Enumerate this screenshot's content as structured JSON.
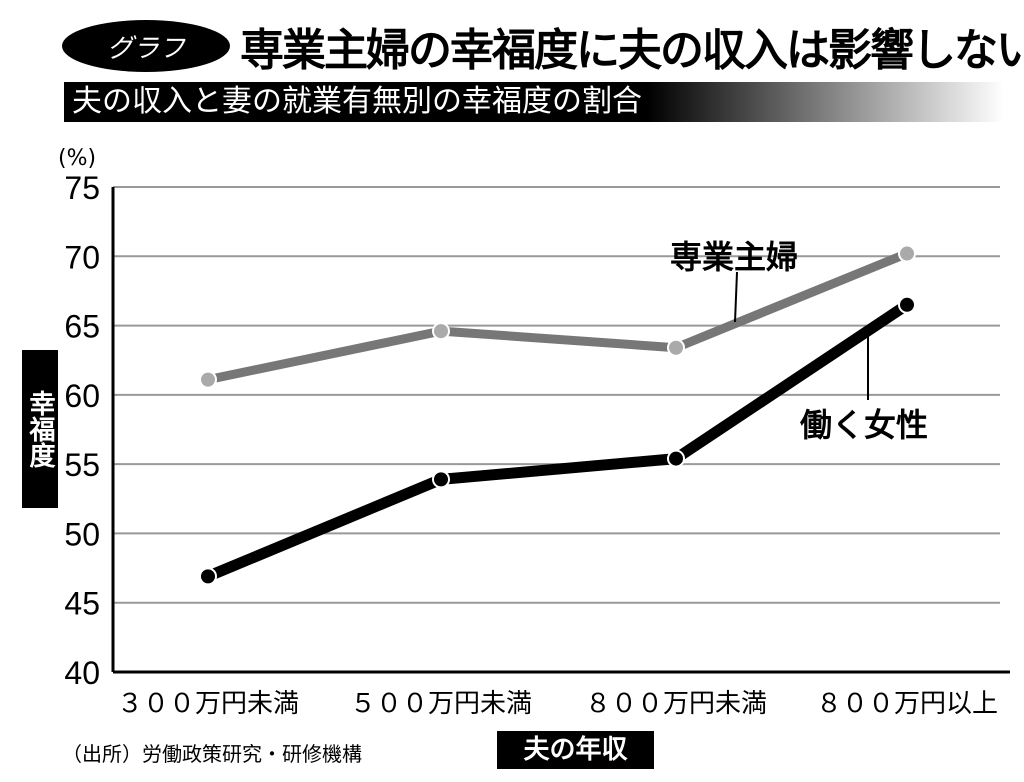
{
  "header": {
    "badge": "グラフ",
    "title": "専業主婦の幸福度に夫の収入は影響しない",
    "subtitle": "夫の収入と妻の就業有無別の幸福度の割合"
  },
  "source": "（出所）労働政策研究・研修機構",
  "chart_data": {
    "type": "line",
    "title": "夫の収入と妻の就業有無別の幸福度の割合",
    "xlabel": "夫の年収",
    "ylabel": "幸福度",
    "yunit": "(%)",
    "categories": [
      "３００万円未満",
      "５００万円未満",
      "８００万円未満",
      "８００万円以上"
    ],
    "ylim": [
      40,
      75
    ],
    "yticks": [
      40,
      45,
      50,
      55,
      60,
      65,
      70,
      75
    ],
    "grid": true,
    "series": [
      {
        "name": "専業主婦",
        "values": [
          61.1,
          64.6,
          63.4,
          70.2
        ],
        "color": "#777777"
      },
      {
        "name": "働く女性",
        "values": [
          46.9,
          53.9,
          55.4,
          66.5
        ],
        "color": "#000000"
      }
    ]
  }
}
